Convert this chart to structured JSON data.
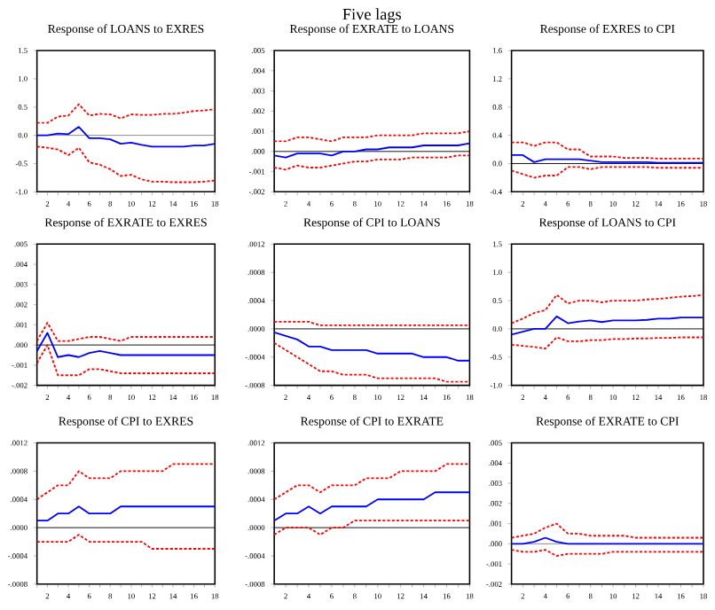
{
  "chart_data": [
    {
      "type": "line",
      "title": "Response of LOANS to EXRES",
      "x": [
        1,
        2,
        3,
        4,
        5,
        6,
        7,
        8,
        9,
        10,
        11,
        12,
        13,
        14,
        15,
        16,
        17,
        18
      ],
      "xlim": [
        1,
        18
      ],
      "xticks": [
        {
          "value": 1,
          "label": null
        },
        2,
        {
          "value": 3,
          "label": null
        },
        4,
        {
          "value": 5,
          "label": null
        },
        6,
        {
          "value": 7,
          "label": null
        },
        8,
        {
          "value": 9,
          "label": null
        },
        10,
        {
          "value": 11,
          "label": null
        },
        12,
        {
          "value": 13,
          "label": null
        },
        14,
        {
          "value": 15,
          "label": null
        },
        16,
        {
          "value": 17,
          "label": null
        },
        18
      ],
      "ylim": [
        -1,
        1.5
      ],
      "yticks": [
        {
          "value": -1,
          "label": "-1.0"
        },
        -0.5,
        {
          "value": 0,
          "label": "0.0"
        },
        0.5,
        {
          "value": 1,
          "label": "1.0"
        },
        1.5
      ],
      "ref_lines": [
        {
          "axis": "y",
          "value": 0,
          "color": "#808080"
        }
      ],
      "series": [
        {
          "color": "#0000ff",
          "line_style": "solid",
          "values": [
            0,
            0,
            0.03,
            0.02,
            0.15,
            -0.05,
            -0.05,
            -0.07,
            -0.15,
            -0.13,
            -0.17,
            -0.2,
            -0.2,
            -0.2,
            -0.2,
            -0.18,
            -0.18,
            -0.15
          ]
        },
        {
          "color": "#ff0000",
          "line_style": "dashed",
          "values": [
            0.22,
            0.22,
            0.33,
            0.35,
            0.55,
            0.35,
            0.38,
            0.37,
            0.3,
            0.37,
            0.36,
            0.36,
            0.38,
            0.38,
            0.4,
            0.43,
            0.44,
            0.46
          ]
        },
        {
          "color": "#ff0000",
          "line_style": "dashed",
          "values": [
            -0.2,
            -0.22,
            -0.25,
            -0.35,
            -0.22,
            -0.48,
            -0.52,
            -0.6,
            -0.72,
            -0.7,
            -0.78,
            -0.82,
            -0.82,
            -0.83,
            -0.83,
            -0.83,
            -0.82,
            -0.8
          ]
        }
      ]
    },
    {
      "type": "line",
      "title": "Response of EXRATE to LOANS",
      "annotations": [
        "Five lags"
      ],
      "x": [
        1,
        2,
        3,
        4,
        5,
        6,
        7,
        8,
        9,
        10,
        11,
        12,
        13,
        14,
        15,
        16,
        17,
        18
      ],
      "xlim": [
        1,
        18
      ],
      "xticks": [
        {
          "value": 1,
          "label": null
        },
        2,
        {
          "value": 3,
          "label": null
        },
        4,
        {
          "value": 5,
          "label": null
        },
        6,
        {
          "value": 7,
          "label": null
        },
        8,
        {
          "value": 9,
          "label": null
        },
        10,
        {
          "value": 11,
          "label": null
        },
        12,
        {
          "value": 13,
          "label": null
        },
        14,
        {
          "value": 15,
          "label": null
        },
        16,
        {
          "value": 17,
          "label": null
        },
        18
      ],
      "ylim": [
        -0.002,
        0.005
      ],
      "yticks": [
        {
          "value": -0.002,
          "label": "-.002"
        },
        {
          "value": -0.001,
          "label": "-.001"
        },
        {
          "value": 0,
          "label": ".000"
        },
        {
          "value": 0.001,
          "label": ".001"
        },
        {
          "value": 0.002,
          "label": ".002"
        },
        {
          "value": 0.003,
          "label": ".003"
        },
        {
          "value": 0.004,
          "label": ".004"
        },
        {
          "value": 0.005,
          "label": ".005"
        }
      ],
      "ref_lines": [
        {
          "axis": "y",
          "value": 0,
          "color": "#000000"
        }
      ],
      "series": [
        {
          "color": "#0000ff",
          "line_style": "solid",
          "values": [
            -0.0002,
            -0.0003,
            -0.0001,
            -0.0001,
            -0.0001,
            -0.0002,
            0,
            0,
            0.0001,
            0.0001,
            0.0002,
            0.0002,
            0.0002,
            0.0003,
            0.0003,
            0.0003,
            0.0003,
            0.0004
          ]
        },
        {
          "color": "#ff0000",
          "line_style": "dashed",
          "values": [
            0.0005,
            0.0005,
            0.0007,
            0.0007,
            0.0006,
            0.0005,
            0.0007,
            0.0007,
            0.0007,
            0.0008,
            0.0008,
            0.0008,
            0.0008,
            0.0009,
            0.0009,
            0.0009,
            0.0009,
            0.001
          ]
        },
        {
          "color": "#ff0000",
          "line_style": "dashed",
          "values": [
            -0.0008,
            -0.0009,
            -0.0007,
            -0.0008,
            -0.0008,
            -0.0007,
            -0.0006,
            -0.0005,
            -0.0005,
            -0.0004,
            -0.0004,
            -0.0004,
            -0.0003,
            -0.0003,
            -0.0003,
            -0.0003,
            -0.0002,
            -0.0002
          ]
        }
      ]
    },
    {
      "type": "line",
      "title": "Response of EXRES to CPI",
      "x": [
        1,
        2,
        3,
        4,
        5,
        6,
        7,
        8,
        9,
        10,
        11,
        12,
        13,
        14,
        15,
        16,
        17,
        18
      ],
      "xlim": [
        1,
        18
      ],
      "xticks": [
        {
          "value": 1,
          "label": null
        },
        2,
        {
          "value": 3,
          "label": null
        },
        4,
        {
          "value": 5,
          "label": null
        },
        6,
        {
          "value": 7,
          "label": null
        },
        8,
        {
          "value": 9,
          "label": null
        },
        10,
        {
          "value": 11,
          "label": null
        },
        12,
        {
          "value": 13,
          "label": null
        },
        14,
        {
          "value": 15,
          "label": null
        },
        16,
        {
          "value": 17,
          "label": null
        },
        18
      ],
      "ylim": [
        -0.4,
        1.6
      ],
      "yticks": [
        -0.4,
        {
          "value": 0,
          "label": "0.0"
        },
        0.4,
        0.8,
        1.2,
        1.6
      ],
      "ref_lines": [
        {
          "axis": "y",
          "value": 0,
          "color": "#000000"
        }
      ],
      "series": [
        {
          "color": "#0000ff",
          "line_style": "solid",
          "values": [
            0.12,
            0.12,
            0.02,
            0.06,
            0.06,
            0.06,
            0.06,
            0.04,
            0.02,
            0.02,
            0.02,
            0.02,
            0.02,
            0.01,
            0.01,
            0.01,
            0.01,
            0.01
          ]
        },
        {
          "color": "#ff0000",
          "line_style": "dashed",
          "values": [
            0.3,
            0.3,
            0.25,
            0.3,
            0.3,
            0.2,
            0.2,
            0.1,
            0.1,
            0.1,
            0.08,
            0.08,
            0.08,
            0.07,
            0.07,
            0.07,
            0.07,
            0.07
          ]
        },
        {
          "color": "#ff0000",
          "line_style": "dashed",
          "values": [
            -0.1,
            -0.15,
            -0.2,
            -0.17,
            -0.17,
            -0.05,
            -0.05,
            -0.08,
            -0.05,
            -0.05,
            -0.05,
            -0.05,
            -0.05,
            -0.06,
            -0.06,
            -0.06,
            -0.06,
            -0.06
          ]
        }
      ]
    },
    {
      "type": "line",
      "title": "Response of EXRATE to EXRES",
      "x": [
        1,
        2,
        3,
        4,
        5,
        6,
        7,
        8,
        9,
        10,
        11,
        12,
        13,
        14,
        15,
        16,
        17,
        18
      ],
      "xlim": [
        1,
        18
      ],
      "xticks": [
        {
          "value": 1,
          "label": null
        },
        2,
        {
          "value": 3,
          "label": null
        },
        4,
        {
          "value": 5,
          "label": null
        },
        6,
        {
          "value": 7,
          "label": null
        },
        8,
        {
          "value": 9,
          "label": null
        },
        10,
        {
          "value": 11,
          "label": null
        },
        12,
        {
          "value": 13,
          "label": null
        },
        14,
        {
          "value": 15,
          "label": null
        },
        16,
        {
          "value": 17,
          "label": null
        },
        18
      ],
      "ylim": [
        -0.002,
        0.005
      ],
      "yticks": [
        {
          "value": -0.002,
          "label": "-.002"
        },
        {
          "value": -0.001,
          "label": "-.001"
        },
        {
          "value": 0,
          "label": ".000"
        },
        {
          "value": 0.001,
          "label": ".001"
        },
        {
          "value": 0.002,
          "label": ".002"
        },
        {
          "value": 0.003,
          "label": ".003"
        },
        {
          "value": 0.004,
          "label": ".004"
        },
        {
          "value": 0.005,
          "label": ".005"
        }
      ],
      "ref_lines": [
        {
          "axis": "y",
          "value": 0,
          "color": "#000000"
        }
      ],
      "series": [
        {
          "color": "#0000ff",
          "line_style": "solid",
          "values": [
            -0.0003,
            0.0006,
            -0.0006,
            -0.0005,
            -0.0006,
            -0.0004,
            -0.0003,
            -0.0004,
            -0.0005,
            -0.0005,
            -0.0005,
            -0.0005,
            -0.0005,
            -0.0005,
            -0.0005,
            -0.0005,
            -0.0005,
            -0.0005
          ]
        },
        {
          "color": "#ff0000",
          "line_style": "dashed",
          "values": [
            0.0002,
            0.0011,
            0.0002,
            0.0002,
            0.0003,
            0.0004,
            0.0004,
            0.0003,
            0.0002,
            0.0004,
            0.0004,
            0.0004,
            0.0004,
            0.0004,
            0.0004,
            0.0004,
            0.0004,
            0.0004
          ]
        },
        {
          "color": "#ff0000",
          "line_style": "dashed",
          "values": [
            -0.0009,
            0,
            -0.0015,
            -0.0015,
            -0.0015,
            -0.0012,
            -0.0012,
            -0.0013,
            -0.0014,
            -0.0014,
            -0.0014,
            -0.0014,
            -0.0014,
            -0.0014,
            -0.0014,
            -0.0014,
            -0.0014,
            -0.0014
          ]
        }
      ]
    },
    {
      "type": "line",
      "title": "Response of CPI to LOANS",
      "x": [
        1,
        2,
        3,
        4,
        5,
        6,
        7,
        8,
        9,
        10,
        11,
        12,
        13,
        14,
        15,
        16,
        17,
        18
      ],
      "xlim": [
        1,
        18
      ],
      "xticks": [
        {
          "value": 1,
          "label": null
        },
        2,
        {
          "value": 3,
          "label": null
        },
        4,
        {
          "value": 5,
          "label": null
        },
        6,
        {
          "value": 7,
          "label": null
        },
        8,
        {
          "value": 9,
          "label": null
        },
        10,
        {
          "value": 11,
          "label": null
        },
        12,
        {
          "value": 13,
          "label": null
        },
        14,
        {
          "value": 15,
          "label": null
        },
        16,
        {
          "value": 17,
          "label": null
        },
        18
      ],
      "ylim": [
        -0.0008,
        0.0012
      ],
      "yticks": [
        {
          "value": -0.0008,
          "label": "-.0008"
        },
        {
          "value": -0.0004,
          "label": "-.0004"
        },
        {
          "value": 0,
          "label": ".0000"
        },
        {
          "value": 0.0004,
          "label": ".0004"
        },
        {
          "value": 0.0008,
          "label": ".0008"
        },
        {
          "value": 0.0012,
          "label": ".0012"
        }
      ],
      "ref_lines": [
        {
          "axis": "y",
          "value": 0,
          "color": "#000000"
        }
      ],
      "series": [
        {
          "color": "#0000ff",
          "line_style": "solid",
          "values": [
            -5e-05,
            -0.0001,
            -0.00015,
            -0.00025,
            -0.00025,
            -0.0003,
            -0.0003,
            -0.0003,
            -0.0003,
            -0.00035,
            -0.00035,
            -0.00035,
            -0.00035,
            -0.0004,
            -0.0004,
            -0.0004,
            -0.00045,
            -0.00045
          ]
        },
        {
          "color": "#ff0000",
          "line_style": "dashed",
          "values": [
            0.0001,
            0.0001,
            0.0001,
            0.0001,
            5e-05,
            5e-05,
            5e-05,
            5e-05,
            5e-05,
            5e-05,
            5e-05,
            5e-05,
            5e-05,
            5e-05,
            5e-05,
            5e-05,
            5e-05,
            5e-05
          ]
        },
        {
          "color": "#ff0000",
          "line_style": "dashed",
          "values": [
            -0.0002,
            -0.0003,
            -0.0004,
            -0.0005,
            -0.0006,
            -0.0006,
            -0.00065,
            -0.00065,
            -0.00065,
            -0.0007,
            -0.0007,
            -0.0007,
            -0.0007,
            -0.0007,
            -0.0007,
            -0.00075,
            -0.00075,
            -0.00075
          ]
        }
      ]
    },
    {
      "type": "line",
      "title": "Response of LOANS to CPI",
      "x": [
        1,
        2,
        3,
        4,
        5,
        6,
        7,
        8,
        9,
        10,
        11,
        12,
        13,
        14,
        15,
        16,
        17,
        18
      ],
      "xlim": [
        1,
        18
      ],
      "xticks": [
        {
          "value": 1,
          "label": null
        },
        2,
        {
          "value": 3,
          "label": null
        },
        4,
        {
          "value": 5,
          "label": null
        },
        6,
        {
          "value": 7,
          "label": null
        },
        8,
        {
          "value": 9,
          "label": null
        },
        10,
        {
          "value": 11,
          "label": null
        },
        12,
        {
          "value": 13,
          "label": null
        },
        14,
        {
          "value": 15,
          "label": null
        },
        16,
        {
          "value": 17,
          "label": null
        },
        18
      ],
      "ylim": [
        -1,
        1.5
      ],
      "yticks": [
        {
          "value": -1,
          "label": "-1.0"
        },
        -0.5,
        {
          "value": 0,
          "label": "0.0"
        },
        0.5,
        {
          "value": 1,
          "label": "1.0"
        },
        1.5
      ],
      "ref_lines": [
        {
          "axis": "y",
          "value": 0,
          "color": "#000000"
        }
      ],
      "series": [
        {
          "color": "#0000ff",
          "line_style": "solid",
          "values": [
            -0.1,
            -0.05,
            0,
            0,
            0.22,
            0.1,
            0.13,
            0.15,
            0.12,
            0.15,
            0.15,
            0.15,
            0.16,
            0.18,
            0.18,
            0.2,
            0.2,
            0.2
          ]
        },
        {
          "color": "#ff0000",
          "line_style": "dashed",
          "values": [
            0.1,
            0.18,
            0.28,
            0.33,
            0.6,
            0.45,
            0.5,
            0.5,
            0.47,
            0.5,
            0.5,
            0.5,
            0.52,
            0.53,
            0.55,
            0.57,
            0.58,
            0.6
          ]
        },
        {
          "color": "#ff0000",
          "line_style": "dashed",
          "values": [
            -0.28,
            -0.3,
            -0.32,
            -0.35,
            -0.15,
            -0.22,
            -0.22,
            -0.2,
            -0.2,
            -0.18,
            -0.18,
            -0.17,
            -0.17,
            -0.16,
            -0.16,
            -0.15,
            -0.15,
            -0.15
          ]
        }
      ]
    },
    {
      "type": "line",
      "title": "Response of CPI to EXRES",
      "x": [
        1,
        2,
        3,
        4,
        5,
        6,
        7,
        8,
        9,
        10,
        11,
        12,
        13,
        14,
        15,
        16,
        17,
        18
      ],
      "xlim": [
        1,
        18
      ],
      "xticks": [
        {
          "value": 1,
          "label": null
        },
        2,
        {
          "value": 3,
          "label": null
        },
        4,
        {
          "value": 5,
          "label": null
        },
        6,
        {
          "value": 7,
          "label": null
        },
        8,
        {
          "value": 9,
          "label": null
        },
        10,
        {
          "value": 11,
          "label": null
        },
        12,
        {
          "value": 13,
          "label": null
        },
        14,
        {
          "value": 15,
          "label": null
        },
        16,
        {
          "value": 17,
          "label": null
        },
        18
      ],
      "ylim": [
        -0.0008,
        0.0012
      ],
      "yticks": [
        {
          "value": -0.0008,
          "label": "-.0008"
        },
        {
          "value": -0.0004,
          "label": "-.0004"
        },
        {
          "value": 0,
          "label": ".0000"
        },
        {
          "value": 0.0004,
          "label": ".0004"
        },
        {
          "value": 0.0008,
          "label": ".0008"
        },
        {
          "value": 0.0012,
          "label": ".0012"
        }
      ],
      "ref_lines": [
        {
          "axis": "y",
          "value": 0,
          "color": "#000000"
        }
      ],
      "series": [
        {
          "color": "#0000ff",
          "line_style": "solid",
          "values": [
            0.0001,
            0.0001,
            0.0002,
            0.0002,
            0.0003,
            0.0002,
            0.0002,
            0.0002,
            0.0003,
            0.0003,
            0.0003,
            0.0003,
            0.0003,
            0.0003,
            0.0003,
            0.0003,
            0.0003,
            0.0003
          ]
        },
        {
          "color": "#ff0000",
          "line_style": "dashed",
          "values": [
            0.0004,
            0.0005,
            0.0006,
            0.0006,
            0.0008,
            0.0007,
            0.0007,
            0.0007,
            0.0008,
            0.0008,
            0.0008,
            0.0008,
            0.0008,
            0.0009,
            0.0009,
            0.0009,
            0.0009,
            0.0009
          ]
        },
        {
          "color": "#ff0000",
          "line_style": "dashed",
          "values": [
            -0.0002,
            -0.0002,
            -0.0002,
            -0.0002,
            -0.0001,
            -0.0002,
            -0.0002,
            -0.0002,
            -0.0002,
            -0.0002,
            -0.0002,
            -0.0003,
            -0.0003,
            -0.0003,
            -0.0003,
            -0.0003,
            -0.0003,
            -0.0003
          ]
        }
      ]
    },
    {
      "type": "line",
      "title": "Response of CPI to EXRATE",
      "x": [
        1,
        2,
        3,
        4,
        5,
        6,
        7,
        8,
        9,
        10,
        11,
        12,
        13,
        14,
        15,
        16,
        17,
        18
      ],
      "xlim": [
        1,
        18
      ],
      "xticks": [
        {
          "value": 1,
          "label": null
        },
        2,
        {
          "value": 3,
          "label": null
        },
        4,
        {
          "value": 5,
          "label": null
        },
        6,
        {
          "value": 7,
          "label": null
        },
        8,
        {
          "value": 9,
          "label": null
        },
        10,
        {
          "value": 11,
          "label": null
        },
        12,
        {
          "value": 13,
          "label": null
        },
        14,
        {
          "value": 15,
          "label": null
        },
        16,
        {
          "value": 17,
          "label": null
        },
        18
      ],
      "ylim": [
        -0.0008,
        0.0012
      ],
      "yticks": [
        {
          "value": -0.0008,
          "label": "-.0008"
        },
        {
          "value": -0.0004,
          "label": "-.0004"
        },
        {
          "value": 0,
          "label": ".0000"
        },
        {
          "value": 0.0004,
          "label": ".0004"
        },
        {
          "value": 0.0008,
          "label": ".0008"
        },
        {
          "value": 0.0012,
          "label": ".0012"
        }
      ],
      "ref_lines": [
        {
          "axis": "y",
          "value": 0,
          "color": "#000000"
        }
      ],
      "series": [
        {
          "color": "#0000ff",
          "line_style": "solid",
          "values": [
            0.0001,
            0.0002,
            0.0002,
            0.0003,
            0.0002,
            0.0003,
            0.0003,
            0.0003,
            0.0003,
            0.0004,
            0.0004,
            0.0004,
            0.0004,
            0.0004,
            0.0005,
            0.0005,
            0.0005,
            0.0005
          ]
        },
        {
          "color": "#ff0000",
          "line_style": "dashed",
          "values": [
            0.0004,
            0.0005,
            0.0006,
            0.0006,
            0.0005,
            0.0006,
            0.0006,
            0.0006,
            0.0007,
            0.0007,
            0.0007,
            0.0008,
            0.0008,
            0.0008,
            0.0008,
            0.0009,
            0.0009,
            0.0009
          ]
        },
        {
          "color": "#ff0000",
          "line_style": "dashed",
          "values": [
            -0.0001,
            0,
            0,
            0,
            -0.0001,
            0,
            0,
            0.0001,
            0.0001,
            0.0001,
            0.0001,
            0.0001,
            0.0001,
            0.0001,
            0.0001,
            0.0001,
            0.0001,
            0.0001
          ]
        }
      ]
    },
    {
      "type": "line",
      "title": "Response of EXRATE to CPI",
      "x": [
        1,
        2,
        3,
        4,
        5,
        6,
        7,
        8,
        9,
        10,
        11,
        12,
        13,
        14,
        15,
        16,
        17,
        18
      ],
      "xlim": [
        1,
        18
      ],
      "xticks": [
        {
          "value": 1,
          "label": null
        },
        2,
        {
          "value": 3,
          "label": null
        },
        4,
        {
          "value": 5,
          "label": null
        },
        6,
        {
          "value": 7,
          "label": null
        },
        8,
        {
          "value": 9,
          "label": null
        },
        10,
        {
          "value": 11,
          "label": null
        },
        12,
        {
          "value": 13,
          "label": null
        },
        14,
        {
          "value": 15,
          "label": null
        },
        16,
        {
          "value": 17,
          "label": null
        },
        18
      ],
      "ylim": [
        -0.002,
        0.005
      ],
      "yticks": [
        {
          "value": -0.002,
          "label": "-.002"
        },
        {
          "value": -0.001,
          "label": "-.001"
        },
        {
          "value": 0,
          "label": ".000"
        },
        {
          "value": 0.001,
          "label": ".001"
        },
        {
          "value": 0.002,
          "label": ".002"
        },
        {
          "value": 0.003,
          "label": ".003"
        },
        {
          "value": 0.004,
          "label": ".004"
        },
        {
          "value": 0.005,
          "label": ".005"
        }
      ],
      "ref_lines": [
        {
          "axis": "y",
          "value": 0,
          "color": "#808080"
        }
      ],
      "series": [
        {
          "color": "#0000ff",
          "line_style": "solid",
          "values": [
            0,
            0,
            0.0001,
            0.0003,
            0.0001,
            0,
            0,
            0,
            0,
            0,
            0,
            0,
            0,
            0,
            0,
            0,
            0,
            0
          ]
        },
        {
          "color": "#ff0000",
          "line_style": "dashed",
          "values": [
            0.0003,
            0.0004,
            0.0005,
            0.0008,
            0.001,
            0.0005,
            0.0005,
            0.0004,
            0.0004,
            0.0004,
            0.0004,
            0.0003,
            0.0003,
            0.0003,
            0.0003,
            0.0003,
            0.0003,
            0.0003
          ]
        },
        {
          "color": "#ff0000",
          "line_style": "dashed",
          "values": [
            -0.0003,
            -0.0004,
            -0.0004,
            -0.0003,
            -0.0006,
            -0.0005,
            -0.0005,
            -0.0005,
            -0.0005,
            -0.0004,
            -0.0004,
            -0.0004,
            -0.0004,
            -0.0004,
            -0.0004,
            -0.0004,
            -0.0004,
            -0.0004
          ]
        }
      ]
    }
  ]
}
